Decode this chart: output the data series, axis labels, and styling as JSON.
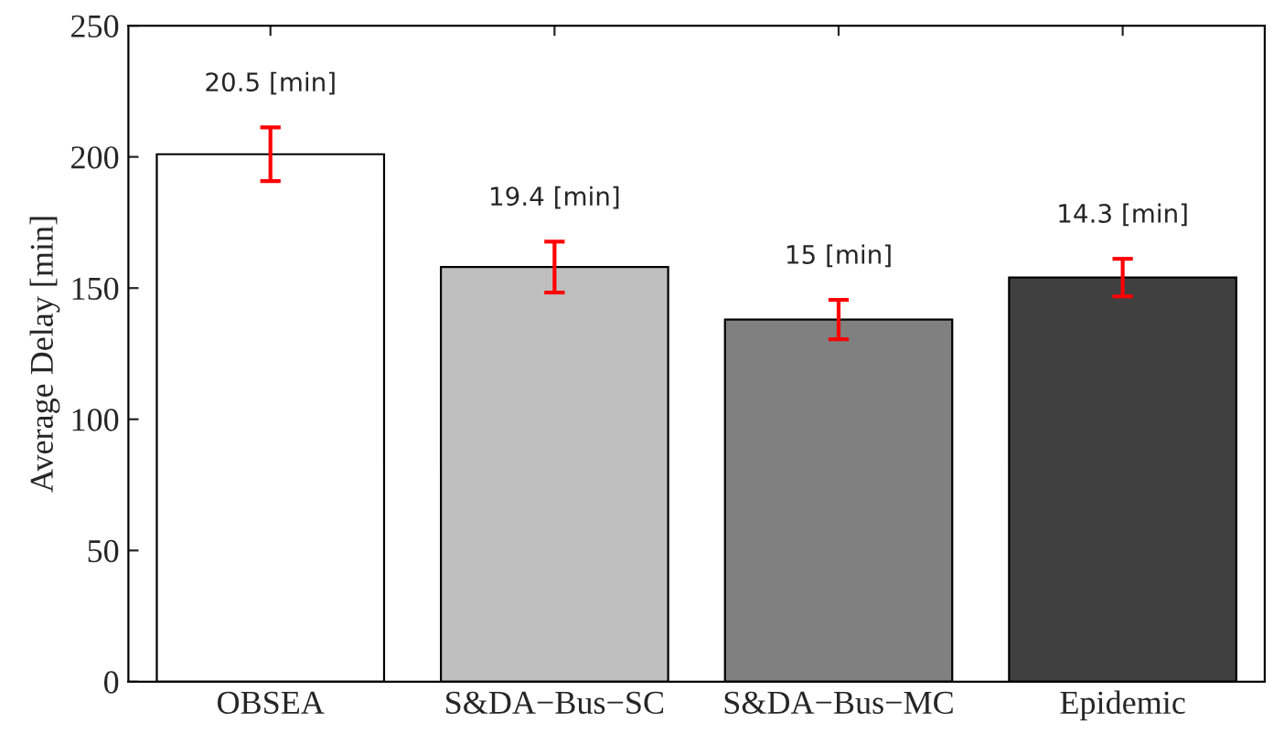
{
  "chart_data": {
    "type": "bar",
    "ylabel": "Average Delay [min]",
    "categories": [
      "OBSEA",
      "S&DA−Bus−SC",
      "S&DA−Bus−MC",
      "Epidemic"
    ],
    "values": [
      201,
      158,
      138,
      154
    ],
    "colors": [
      "#ffffff",
      "#bfbfbf",
      "#808080",
      "#404040"
    ],
    "errors": [
      10.25,
      9.7,
      7.5,
      7.15
    ],
    "annotations": [
      "20.5 [min]",
      "19.4 [min]",
      "15 [min]",
      "14.3 [min]"
    ],
    "ylim": [
      0,
      250
    ],
    "yticks": [
      0,
      50,
      100,
      150,
      200,
      250
    ],
    "grid": false
  }
}
